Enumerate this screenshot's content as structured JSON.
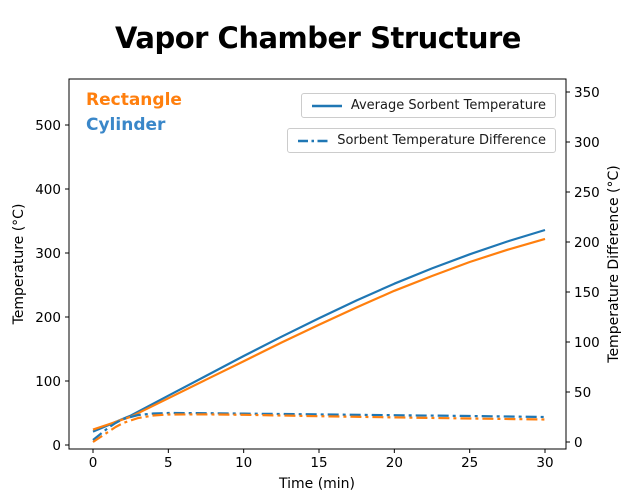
{
  "title": "Vapor Chamber Structure",
  "annotations": {
    "rectangle": {
      "label": "Rectangle",
      "color": "#ff7f0e"
    },
    "cylinder": {
      "label": "Cylinder",
      "color": "#3a87c9"
    }
  },
  "legend": [
    {
      "label": "Average Sorbent Temperature",
      "style": "solid",
      "color": "#1f77b4"
    },
    {
      "label": "Sorbent Temperature Difference",
      "style": "dashdot",
      "color": "#1f77b4"
    }
  ],
  "axes": {
    "x": {
      "label": "Time (min)",
      "ticks": [
        0,
        5,
        10,
        15,
        20,
        25,
        30
      ]
    },
    "y_left": {
      "label": "Temperature (°C)",
      "ticks": [
        0,
        100,
        200,
        300,
        400,
        500
      ]
    },
    "y_right": {
      "label": "Temperature Difference (°C)",
      "ticks": [
        0,
        50,
        100,
        150,
        200,
        250,
        300,
        350
      ]
    }
  },
  "chart_data": {
    "type": "line",
    "title": "Vapor Chamber Structure",
    "xlabel": "Time (min)",
    "ylabel_left": "Temperature (°C)",
    "ylabel_right": "Temperature Difference (°C)",
    "xlim": [
      -1.6,
      31.4
    ],
    "ylim_left": [
      -6,
      572
    ],
    "ylim_right": [
      -7,
      363
    ],
    "grid": false,
    "legend_position": "upper right, two separate boxes",
    "series": [
      {
        "name": "Cylinder - Average Sorbent Temperature",
        "axis": "left",
        "style": "solid",
        "color": "#1f77b4",
        "x": [
          0,
          1,
          2.5,
          5,
          7.5,
          10,
          12.5,
          15,
          17.5,
          20,
          22.5,
          25,
          27.5,
          30
        ],
        "y": [
          21,
          31,
          46,
          77,
          108,
          139,
          169,
          198,
          226,
          252,
          276,
          298,
          318,
          336
        ]
      },
      {
        "name": "Rectangle - Average Sorbent Temperature",
        "axis": "left",
        "style": "solid",
        "color": "#ff7f0e",
        "x": [
          0,
          1,
          2.5,
          5,
          7.5,
          10,
          12.5,
          15,
          17.5,
          20,
          22.5,
          25,
          27.5,
          30
        ],
        "y": [
          24,
          32,
          44,
          73,
          102,
          131,
          160,
          188,
          215,
          241,
          264,
          286,
          305,
          322
        ]
      },
      {
        "name": "Cylinder - Sorbent Temperature Difference",
        "axis": "right",
        "style": "dashdot",
        "color": "#1f77b4",
        "x": [
          0,
          0.5,
          1,
          1.5,
          2,
          3,
          4,
          5,
          7.5,
          10,
          12.5,
          15,
          20,
          25,
          30
        ],
        "y": [
          2,
          8,
          14,
          19,
          23,
          27,
          28.5,
          29,
          28.8,
          28.4,
          28,
          27.6,
          26.8,
          26,
          25
        ]
      },
      {
        "name": "Rectangle - Sorbent Temperature Difference",
        "axis": "right",
        "style": "dashdot",
        "color": "#ff7f0e",
        "x": [
          0,
          0.5,
          1,
          1.5,
          2,
          3,
          4,
          5,
          7.5,
          10,
          12.5,
          15,
          20,
          25,
          30
        ],
        "y": [
          0,
          5,
          10,
          15,
          19,
          24,
          26.5,
          27.5,
          27.6,
          27.2,
          26.5,
          25.8,
          24.6,
          23.5,
          22.5
        ]
      }
    ]
  }
}
